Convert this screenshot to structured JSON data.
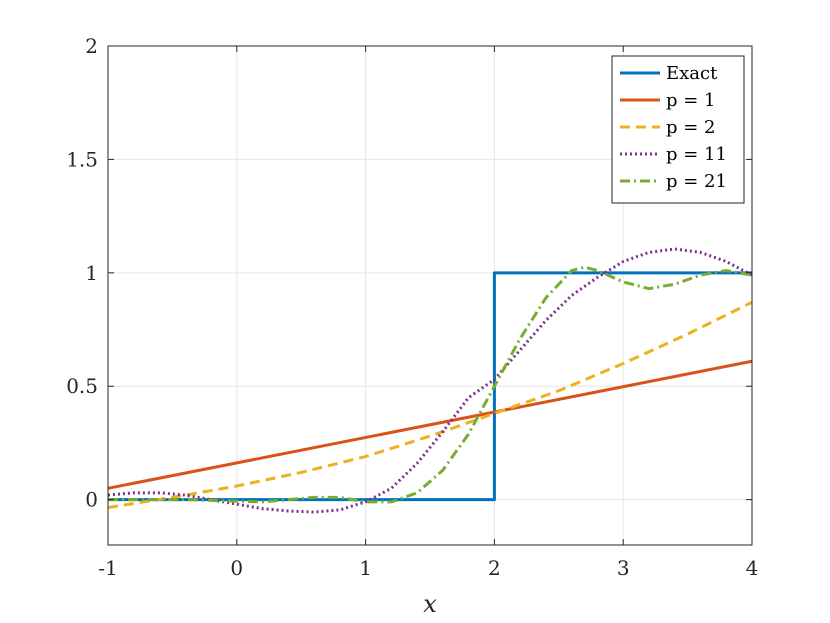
{
  "chart_data": {
    "type": "line",
    "title": "",
    "xlabel": "x",
    "ylabel": "",
    "xlim": [
      -1,
      4
    ],
    "ylim": [
      -0.2,
      2
    ],
    "xticks": [
      -1,
      0,
      1,
      2,
      3,
      4
    ],
    "xtick_labels": [
      "-1",
      "0",
      "1",
      "2",
      "3",
      "4"
    ],
    "yticks": [
      0,
      0.5,
      1,
      1.5,
      2
    ],
    "ytick_labels": [
      "0",
      "0.5",
      "1",
      "1.5",
      "2"
    ],
    "grid": true,
    "legend_position": "top-right",
    "series": [
      {
        "name": "Exact",
        "color": "#0072BD",
        "style": "solid",
        "x": [
          -1,
          2,
          2,
          4
        ],
        "y": [
          0,
          0,
          1,
          1
        ]
      },
      {
        "name": "p = 1",
        "color": "#D95319",
        "style": "solid",
        "x": [
          -1,
          4
        ],
        "y": [
          0.05,
          0.61
        ]
      },
      {
        "name": "p = 2",
        "color": "#EDB120",
        "style": "dashed",
        "x": [
          -1,
          -0.5,
          0,
          0.5,
          1,
          1.5,
          2,
          2.5,
          3,
          3.5,
          4
        ],
        "y": [
          -0.035,
          0.01,
          0.06,
          0.12,
          0.19,
          0.28,
          0.38,
          0.48,
          0.6,
          0.73,
          0.87
        ]
      },
      {
        "name": "p = 11",
        "color": "#7E2F8E",
        "style": "dotted",
        "x": [
          -1,
          -0.8,
          -0.6,
          -0.4,
          -0.2,
          0,
          0.2,
          0.4,
          0.6,
          0.8,
          1,
          1.2,
          1.4,
          1.6,
          1.8,
          2,
          2.2,
          2.4,
          2.6,
          2.8,
          3,
          3.2,
          3.4,
          3.6,
          3.8,
          4
        ],
        "y": [
          0.02,
          0.03,
          0.03,
          0.02,
          0.0,
          -0.02,
          -0.04,
          -0.05,
          -0.055,
          -0.045,
          -0.01,
          0.05,
          0.16,
          0.3,
          0.45,
          0.53,
          0.66,
          0.79,
          0.9,
          0.98,
          1.05,
          1.09,
          1.105,
          1.09,
          1.05,
          0.99
        ]
      },
      {
        "name": "p = 21",
        "color": "#77AC30",
        "style": "dashdot",
        "x": [
          -1,
          -0.7,
          -0.4,
          -0.1,
          0.2,
          0.4,
          0.6,
          0.8,
          1.0,
          1.2,
          1.4,
          1.6,
          1.8,
          2.0,
          2.2,
          2.4,
          2.6,
          2.7,
          2.8,
          3.0,
          3.2,
          3.4,
          3.6,
          3.8,
          4.0
        ],
        "y": [
          0.0,
          0.0,
          0.0,
          -0.005,
          -0.01,
          0.0,
          0.01,
          0.01,
          -0.01,
          -0.01,
          0.03,
          0.13,
          0.29,
          0.5,
          0.71,
          0.89,
          1.01,
          1.025,
          1.01,
          0.96,
          0.93,
          0.95,
          0.99,
          1.01,
          0.99
        ]
      }
    ]
  }
}
